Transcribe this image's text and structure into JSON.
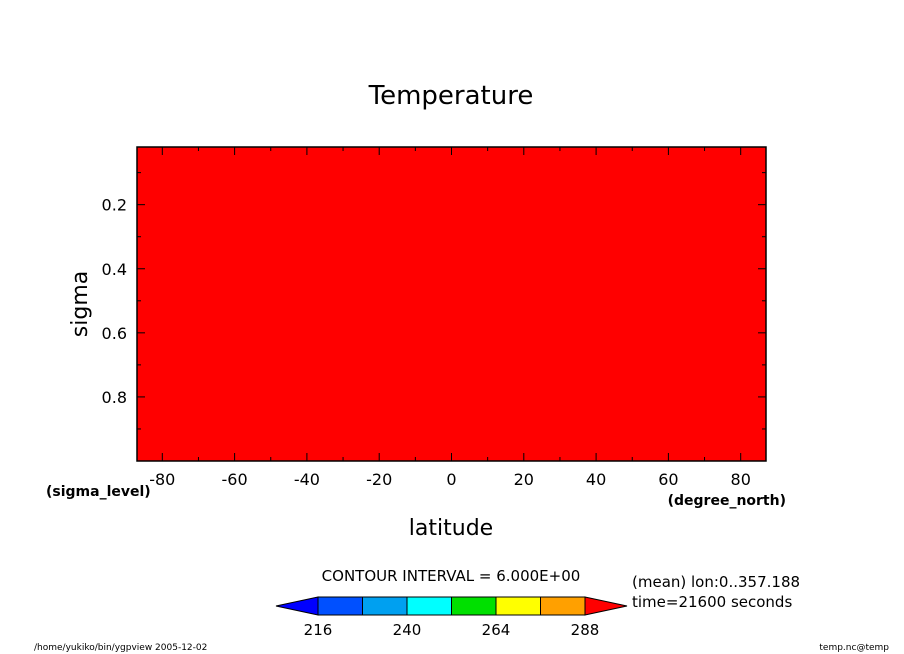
{
  "chart_data": {
    "type": "heatmap",
    "title": "Temperature",
    "xlabel": "latitude",
    "x_units": "(degree_north)",
    "ylabel": "sigma",
    "y_units": "(sigma_level)",
    "xlim": [
      -87,
      87
    ],
    "ylim": [
      1.0,
      0.02
    ],
    "x_ticks": [
      -80,
      -60,
      -40,
      -20,
      0,
      20,
      40,
      60,
      80
    ],
    "x_tick_labels": [
      "-80",
      "-60",
      "-40",
      "-20",
      "0",
      "20",
      "40",
      "60",
      "80"
    ],
    "y_ticks": [
      0.2,
      0.4,
      0.6,
      0.8
    ],
    "y_tick_labels": [
      "0.2",
      "0.4",
      "0.6",
      "0.8"
    ],
    "field_fill_color": "#ff0000",
    "contour_interval_text": "CONTOUR INTERVAL = 6.000E+00",
    "colorbar": {
      "levels": [
        222,
        228,
        234,
        240,
        246,
        252,
        258,
        264,
        270,
        276,
        282
      ],
      "colors": [
        "#0000ff",
        "#0050ff",
        "#00a0f0",
        "#00ffff",
        "#00e000",
        "#ffff00",
        "#ffa000",
        "#ff0000"
      ],
      "tick_values": [
        216,
        240,
        264,
        288
      ],
      "tick_labels": [
        "216",
        "240",
        "264",
        "288"
      ],
      "range": [
        216,
        288
      ]
    },
    "annotations": {
      "mean_text": "(mean) lon:0..357.188",
      "time_text": "time=21600 seconds"
    }
  },
  "footer": {
    "left": "/home/yukiko/bin/ygpview  2005-12-02",
    "right": "temp.nc@temp"
  }
}
